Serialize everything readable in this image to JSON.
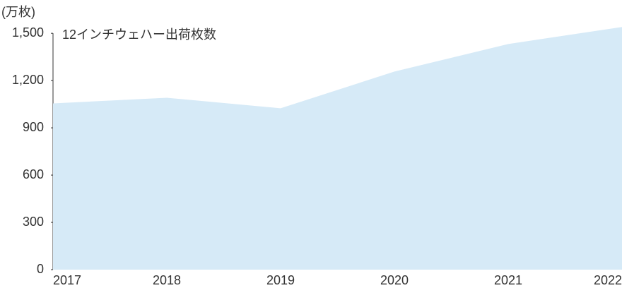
{
  "chart_data": {
    "type": "area",
    "title": "12インチウェハー出荷枚数",
    "y_axis_label": "(万枚)",
    "categories": [
      "2017",
      "2018",
      "2019",
      "2020",
      "2021",
      "2022"
    ],
    "values": [
      1055,
      1091,
      1024,
      1257,
      1432,
      1540
    ],
    "color": "#d6eaf7",
    "ylim": [
      0,
      1550
    ],
    "yticks": [
      0,
      300,
      600,
      900,
      {
        "value": 1200,
        "label": "1,200"
      },
      {
        "value": 1500,
        "label": "1,500"
      }
    ],
    "grid": false
  }
}
